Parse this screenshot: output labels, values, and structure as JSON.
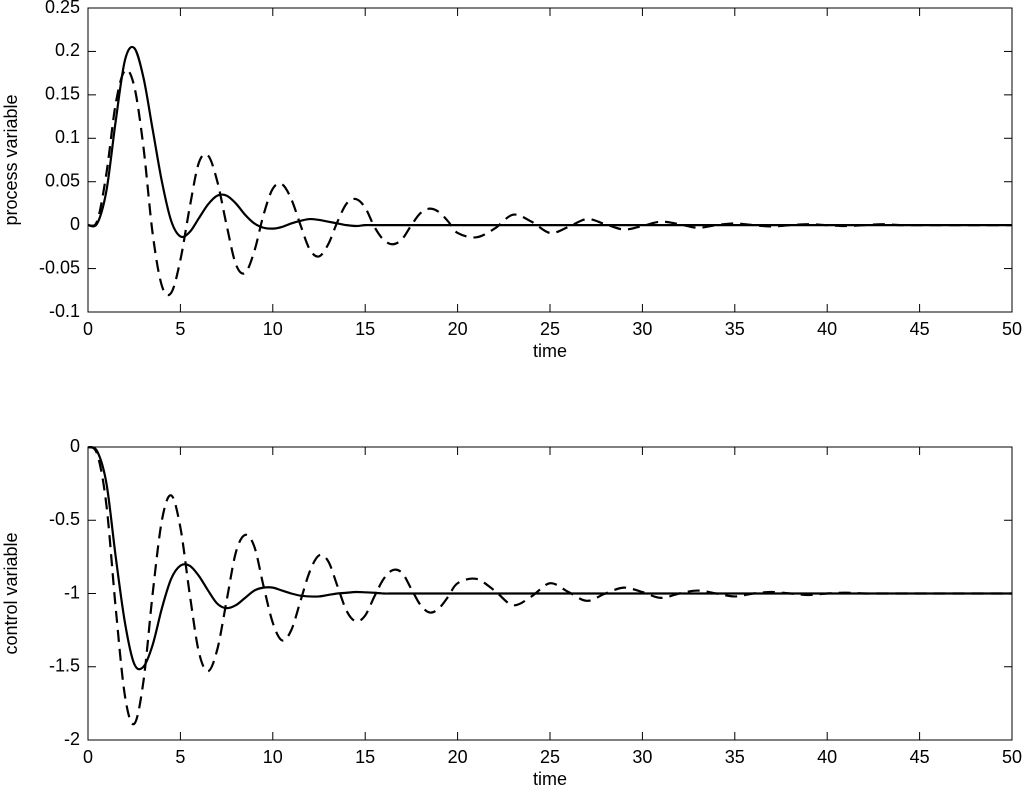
{
  "chart_data": [
    {
      "type": "line",
      "xlabel": "time",
      "ylabel": "process variable",
      "x": [
        0,
        0.5,
        1,
        1.5,
        2,
        2.5,
        3,
        3.5,
        4,
        4.5,
        5,
        5.5,
        6,
        6.5,
        7,
        7.5,
        8,
        8.5,
        9,
        9.5,
        10,
        10.5,
        11,
        11.5,
        12,
        12.5,
        13,
        13.5,
        14,
        14.5,
        15,
        15.5,
        16,
        16.5,
        17,
        17.5,
        18,
        18.5,
        19,
        19.5,
        20,
        21,
        22,
        23,
        24,
        25,
        26,
        27,
        28,
        29,
        30,
        31,
        32,
        33,
        34,
        35,
        36,
        37,
        38,
        39,
        40,
        41,
        42,
        43,
        44,
        45,
        46,
        47,
        48,
        49,
        50
      ],
      "series": [
        {
          "color": "#000000",
          "linestyle": "solid",
          "values": [
            0,
            0.002,
            0.04,
            0.12,
            0.19,
            0.204,
            0.17,
            0.11,
            0.05,
            0.005,
            -0.013,
            -0.008,
            0.008,
            0.024,
            0.034,
            0.034,
            0.025,
            0.012,
            0.002,
            -0.003,
            -0.004,
            -0.002,
            0.002,
            0.005,
            0.007,
            0.006,
            0.004,
            0.002,
            0,
            -0.001,
            0,
            0,
            0,
            0,
            0,
            0,
            0,
            0,
            0,
            0,
            0,
            0,
            0,
            0,
            0,
            0,
            0,
            0,
            0,
            0,
            0,
            0,
            0,
            0,
            0,
            0,
            0,
            0,
            0,
            0,
            0,
            0,
            0,
            0,
            0,
            0,
            0,
            0,
            0,
            0,
            0
          ]
        },
        {
          "color": "#000000",
          "linestyle": "dashed",
          "values": [
            0,
            0.005,
            0.06,
            0.14,
            0.178,
            0.16,
            0.09,
            -0.01,
            -0.07,
            -0.078,
            -0.04,
            0.02,
            0.072,
            0.08,
            0.05,
            0,
            -0.045,
            -0.055,
            -0.03,
            0.012,
            0.042,
            0.047,
            0.03,
            0,
            -0.028,
            -0.036,
            -0.022,
            0.004,
            0.025,
            0.03,
            0.02,
            -0.002,
            -0.017,
            -0.022,
            -0.016,
            0,
            0.014,
            0.019,
            0.015,
            0.004,
            -0.009,
            -0.014,
            -0.004,
            0.012,
            0.004,
            -0.009,
            -0.002,
            0.007,
            0.001,
            -0.005,
            -0.001,
            0.004,
            0.001,
            -0.003,
            0,
            0.002,
            0,
            -0.0015,
            0,
            0.001,
            0,
            -0.001,
            0,
            0.001,
            0,
            0,
            0,
            0,
            0,
            0,
            0
          ]
        }
      ],
      "xlim": [
        0,
        50
      ],
      "xticks": [
        0,
        5,
        10,
        15,
        20,
        25,
        30,
        35,
        40,
        45,
        50
      ],
      "ylim": [
        -0.1,
        0.25
      ],
      "yticks": [
        -0.1,
        -0.05,
        0,
        0.05,
        0.1,
        0.15,
        0.2,
        0.25
      ],
      "grid": false
    },
    {
      "type": "line",
      "xlabel": "time",
      "ylabel": "control variable",
      "x": [
        0,
        0.5,
        1,
        1.5,
        2,
        2.5,
        3,
        3.5,
        4,
        4.5,
        5,
        5.5,
        6,
        6.5,
        7,
        7.5,
        8,
        8.5,
        9,
        9.5,
        10,
        10.5,
        11,
        11.5,
        12,
        12.5,
        13,
        13.5,
        14,
        14.5,
        15,
        15.5,
        16,
        16.5,
        17,
        17.5,
        18,
        18.5,
        19,
        19.5,
        20,
        21,
        22,
        23,
        24,
        25,
        26,
        27,
        28,
        29,
        30,
        31,
        32,
        33,
        34,
        35,
        36,
        37,
        38,
        39,
        40,
        41,
        42,
        43,
        44,
        45,
        46,
        47,
        48,
        49,
        50
      ],
      "series": [
        {
          "color": "#000000",
          "linestyle": "solid",
          "values": [
            0,
            -0.03,
            -0.25,
            -0.75,
            -1.2,
            -1.48,
            -1.5,
            -1.35,
            -1.1,
            -0.9,
            -0.81,
            -0.81,
            -0.88,
            -0.98,
            -1.07,
            -1.1,
            -1.08,
            -1.03,
            -0.98,
            -0.96,
            -0.96,
            -0.98,
            -1,
            -1.015,
            -1.02,
            -1.02,
            -1.01,
            -1,
            -0.995,
            -0.99,
            -0.992,
            -0.995,
            -1,
            -1,
            -1,
            -1,
            -1,
            -1,
            -1,
            -1,
            -1,
            -1,
            -1,
            -1,
            -1,
            -1,
            -1,
            -1,
            -1,
            -1,
            -1,
            -1,
            -1,
            -1,
            -1,
            -1,
            -1,
            -1,
            -1,
            -1,
            -1,
            -1,
            -1,
            -1,
            -1,
            -1,
            -1,
            -1,
            -1,
            -1,
            -1
          ]
        },
        {
          "color": "#000000",
          "linestyle": "dashed",
          "values": [
            0,
            -0.05,
            -0.4,
            -1.1,
            -1.7,
            -1.89,
            -1.6,
            -1,
            -0.5,
            -0.33,
            -0.55,
            -1,
            -1.4,
            -1.53,
            -1.38,
            -1.05,
            -0.72,
            -0.6,
            -0.68,
            -0.95,
            -1.2,
            -1.32,
            -1.25,
            -1.05,
            -0.85,
            -0.74,
            -0.78,
            -0.95,
            -1.12,
            -1.19,
            -1.15,
            -1.02,
            -0.9,
            -0.84,
            -0.86,
            -0.97,
            -1.08,
            -1.13,
            -1.1,
            -1.02,
            -0.93,
            -0.9,
            -0.98,
            -1.08,
            -1.02,
            -0.93,
            -0.99,
            -1.05,
            -1,
            -0.96,
            -0.99,
            -1.03,
            -1,
            -0.98,
            -1,
            -1.02,
            -1,
            -0.99,
            -1,
            -1.01,
            -1,
            -0.995,
            -1,
            -1,
            -1,
            -1,
            -1,
            -1,
            -1,
            -1,
            -1
          ]
        }
      ],
      "xlim": [
        0,
        50
      ],
      "xticks": [
        0,
        5,
        10,
        15,
        20,
        25,
        30,
        35,
        40,
        45,
        50
      ],
      "ylim": [
        -2,
        0
      ],
      "yticks": [
        -2,
        -1.5,
        -1,
        -0.5,
        0
      ],
      "grid": false
    }
  ]
}
